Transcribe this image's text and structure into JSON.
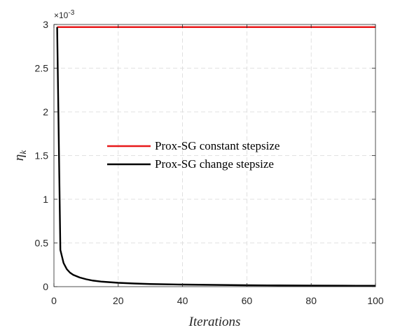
{
  "chart_data": {
    "type": "line",
    "xlabel": "Iterations",
    "ylabel": "η",
    "ylabel_sub": "k",
    "xlim": [
      0,
      100
    ],
    "ylim": [
      0,
      0.003
    ],
    "x_ticks": [
      0,
      20,
      40,
      60,
      80,
      100
    ],
    "x_tick_labels": [
      "0",
      "20",
      "40",
      "60",
      "80",
      "100"
    ],
    "y_ticks": [
      0,
      0.0005,
      0.001,
      0.0015,
      0.002,
      0.0025,
      0.003
    ],
    "y_tick_labels": [
      "0",
      "0.5",
      "1",
      "1.5",
      "2",
      "2.5",
      "3"
    ],
    "y_multiplier": "×10",
    "y_multiplier_exp": "-3",
    "grid": true,
    "legend_position": "center-left",
    "series": [
      {
        "name": "Prox-SG constant stepsize",
        "color": "#e8191a",
        "x": [
          1,
          100
        ],
        "y": [
          0.00297,
          0.00297
        ]
      },
      {
        "name": "Prox-SG change stepsize",
        "color": "#000000",
        "x": [
          1,
          2,
          3,
          4,
          5,
          6,
          8,
          10,
          12,
          15,
          20,
          25,
          30,
          40,
          50,
          60,
          70,
          80,
          90,
          100
        ],
        "y": [
          0.00297,
          0.00042,
          0.00027,
          0.0002,
          0.00016,
          0.000135,
          0.000105,
          8.5e-05,
          7e-05,
          5.7e-05,
          4.4e-05,
          3.6e-05,
          3e-05,
          2.4e-05,
          2e-05,
          1.6e-05,
          1.4e-05,
          1.2e-05,
          1.1e-05,
          1e-05
        ]
      }
    ]
  }
}
